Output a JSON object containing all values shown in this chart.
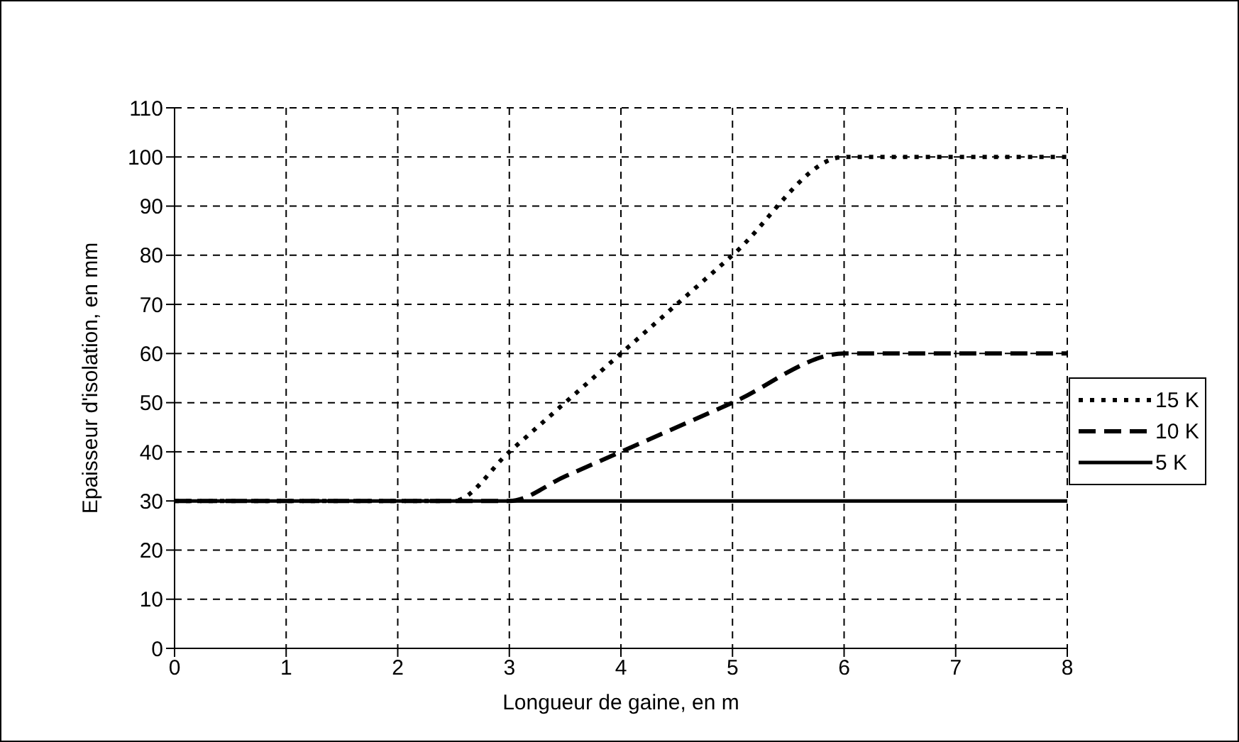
{
  "chart_data": {
    "type": "line",
    "xlabel": "Longueur de gaine, en m",
    "ylabel": "Epaisseur d'isolation, en mm",
    "xlim": [
      0,
      8
    ],
    "xticks": [
      0,
      1,
      2,
      3,
      4,
      5,
      6,
      7,
      8
    ],
    "ylim": [
      0,
      110
    ],
    "yticks": [
      0,
      10,
      20,
      30,
      40,
      50,
      60,
      70,
      80,
      90,
      100,
      110
    ],
    "grid": true,
    "legend": "right",
    "marker": "none",
    "series": [
      {
        "name": "15 K",
        "color": "#000000",
        "line_style": "dotted",
        "x": [
          0,
          1,
          2,
          2.5,
          3,
          3.5,
          4,
          5,
          6,
          7,
          8
        ],
        "values": [
          30,
          30,
          30,
          30,
          40,
          50,
          60,
          80,
          100,
          100,
          100
        ]
      },
      {
        "name": "10 K",
        "color": "#000000",
        "line_style": "dashed",
        "x": [
          0,
          1,
          2,
          3,
          3.5,
          4,
          5,
          6,
          7,
          8
        ],
        "values": [
          30,
          30,
          30,
          30,
          35,
          40,
          50,
          60,
          60,
          60
        ]
      },
      {
        "name": "5 K",
        "color": "#000000",
        "line_style": "solid",
        "x": [
          0,
          1,
          2,
          3,
          4,
          5,
          6,
          7,
          8
        ],
        "values": [
          30,
          30,
          30,
          30,
          30,
          30,
          30,
          30,
          30
        ]
      }
    ]
  }
}
